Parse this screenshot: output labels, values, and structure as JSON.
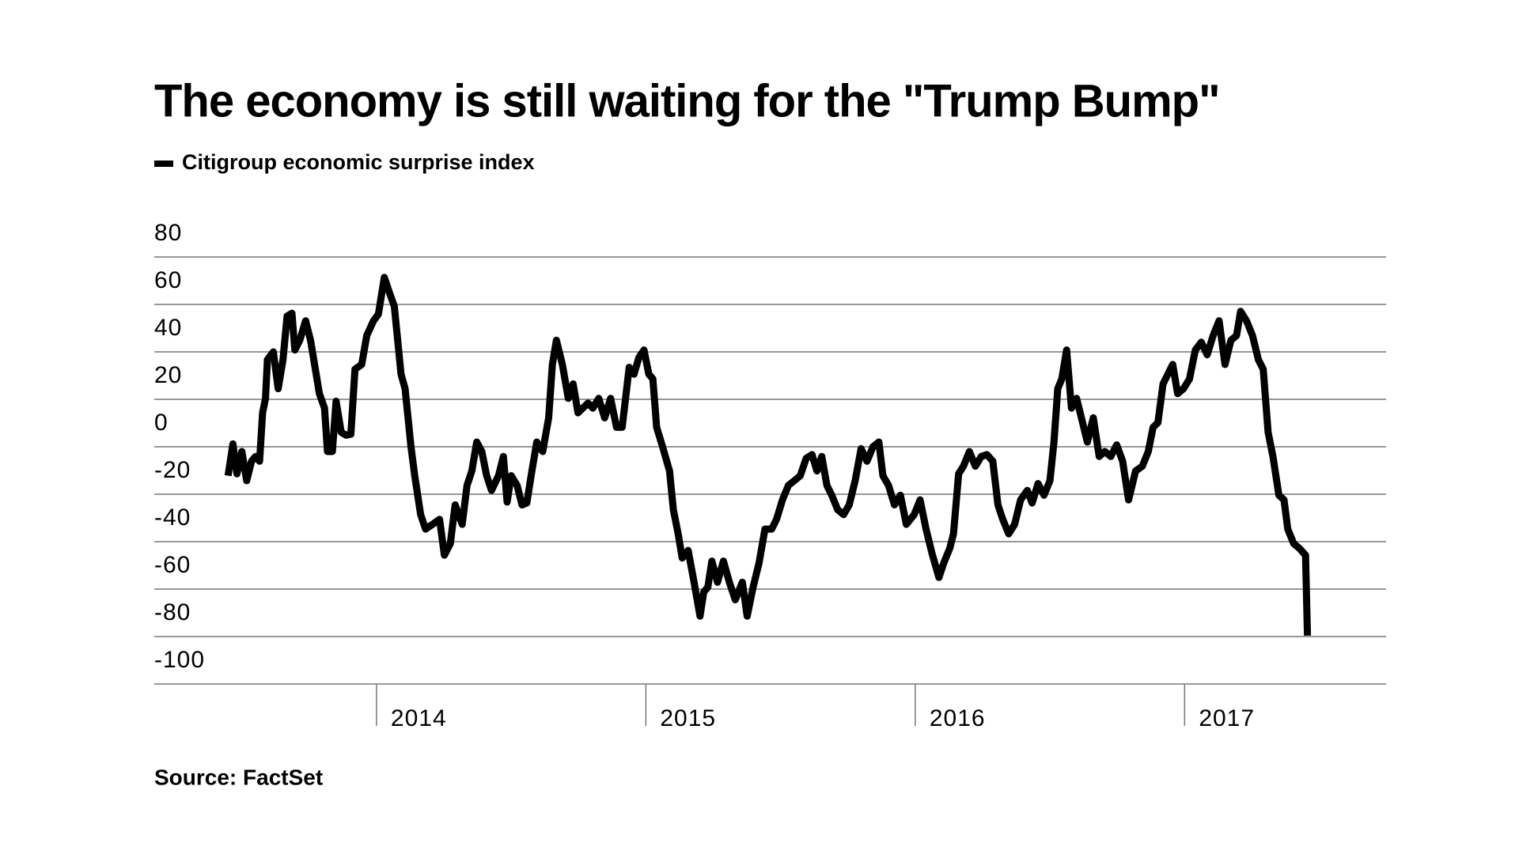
{
  "chart_data": {
    "type": "line",
    "title": "The economy is still waiting for the \"Trump Bump\"",
    "source": "Source: FactSet",
    "x": [
      2013.449,
      2013.467,
      2013.482,
      2013.5,
      2013.518,
      2013.536,
      2013.551,
      2013.566,
      2013.577,
      2013.588,
      2013.595,
      2013.617,
      2013.635,
      2013.653,
      2013.668,
      2013.686,
      2013.697,
      2013.715,
      2013.737,
      2013.755,
      2013.77,
      2013.788,
      2013.807,
      2013.818,
      2013.836,
      2013.85,
      2013.869,
      2013.887,
      2013.905,
      2013.92,
      2013.945,
      2013.964,
      2013.989,
      2014.007,
      2014.029,
      2014.047,
      2014.066,
      2014.077,
      2014.091,
      2014.106,
      2014.128,
      2014.142,
      2014.164,
      2014.182,
      2014.208,
      2014.234,
      2014.252,
      2014.274,
      2014.292,
      2014.318,
      2014.336,
      2014.354,
      2014.372,
      2014.391,
      2014.409,
      2014.427,
      2014.453,
      2014.471,
      2014.485,
      2014.5,
      2014.522,
      2014.54,
      2014.558,
      2014.577,
      2014.595,
      2014.617,
      2014.639,
      2014.653,
      2014.668,
      2014.69,
      2014.712,
      2014.73,
      2014.748,
      2014.766,
      2014.785,
      2014.803,
      2014.825,
      2014.847,
      2014.869,
      2014.891,
      2014.912,
      2014.938,
      2014.956,
      2014.974,
      2014.993,
      2015.011,
      2015.026,
      2015.04,
      2015.062,
      2015.088,
      2015.102,
      2015.12,
      2015.135,
      2015.157,
      2015.179,
      2015.201,
      2015.215,
      2015.23,
      2015.245,
      2015.266,
      2015.288,
      2015.31,
      2015.332,
      2015.358,
      2015.376,
      2015.398,
      2015.42,
      2015.442,
      2015.467,
      2015.485,
      2015.507,
      2015.529,
      2015.551,
      2015.573,
      2015.595,
      2015.617,
      2015.635,
      2015.653,
      2015.672,
      2015.69,
      2015.712,
      2015.734,
      2015.755,
      2015.777,
      2015.799,
      2015.821,
      2015.843,
      2015.865,
      2015.88,
      2015.901,
      2015.923,
      2015.945,
      2015.967,
      2015.996,
      2016.018,
      2016.04,
      2016.062,
      2016.088,
      2016.106,
      2016.128,
      2016.142,
      2016.161,
      2016.179,
      2016.201,
      2016.223,
      2016.245,
      2016.266,
      2016.288,
      2016.307,
      2016.325,
      2016.347,
      2016.369,
      2016.391,
      2016.416,
      2016.434,
      2016.456,
      2016.478,
      2016.5,
      2016.515,
      2016.529,
      2016.544,
      2016.562,
      2016.58,
      2016.599,
      2016.617,
      2016.639,
      2016.661,
      2016.683,
      2016.704,
      2016.726,
      2016.748,
      2016.77,
      2016.792,
      2016.818,
      2016.843,
      2016.865,
      2016.883,
      2016.901,
      2016.92,
      2016.938,
      2016.956,
      2016.974,
      2016.996,
      2017.018,
      2017.04,
      2017.062,
      2017.084,
      2017.106,
      2017.128,
      2017.15,
      2017.172,
      2017.193,
      2017.208,
      2017.23,
      2017.252,
      2017.274,
      2017.292,
      2017.31,
      2017.328,
      2017.35,
      2017.369,
      2017.383,
      2017.405,
      2017.427,
      2017.449,
      2017.456
    ],
    "series": [
      {
        "name": "Citigroup economic surprise index",
        "color": "#000000",
        "values": [
          -12.2,
          1.2,
          -11.4,
          -2.0,
          -14.3,
          -6.1,
          -4.1,
          -6.1,
          14.3,
          20.4,
          36.7,
          40.0,
          24.5,
          36.7,
          55.1,
          56.3,
          40.8,
          44.9,
          53.1,
          44.9,
          34.7,
          22.4,
          16.3,
          -2.0,
          -2.0,
          19.2,
          6.1,
          4.9,
          5.3,
          32.7,
          34.7,
          46.9,
          53.1,
          55.9,
          71.4,
          65.3,
          59.2,
          46.9,
          30.6,
          24.5,
          0,
          -12.2,
          -28.6,
          -34.7,
          -32.7,
          -30.6,
          -45.7,
          -40.8,
          -24.5,
          -32.7,
          -16.3,
          -10.2,
          2.0,
          -2.0,
          -12.2,
          -18.4,
          -12.2,
          -4.1,
          -23.3,
          -12.2,
          -16.3,
          -24.5,
          -23.7,
          -10.2,
          2.0,
          -2.0,
          12.2,
          34.7,
          44.9,
          34.7,
          20.4,
          26.5,
          14.3,
          16.3,
          18.4,
          16.3,
          20.4,
          12.2,
          20.4,
          8.2,
          8.2,
          33.5,
          30.6,
          37.6,
          40.8,
          30.6,
          28.6,
          8.2,
          0,
          -10.2,
          -26.5,
          -36.7,
          -46.9,
          -43.7,
          -57.1,
          -71.4,
          -61.2,
          -59.2,
          -48.2,
          -57.1,
          -48.2,
          -57.1,
          -64.5,
          -57.1,
          -71.4,
          -59.2,
          -49.0,
          -34.7,
          -34.7,
          -30.6,
          -22.4,
          -16.3,
          -14.3,
          -12.2,
          -4.9,
          -3.3,
          -10.2,
          -4.1,
          -16.3,
          -20.4,
          -26.5,
          -28.6,
          -24.5,
          -14.3,
          -0.8,
          -6.1,
          0,
          2.0,
          -12.2,
          -16.3,
          -24.5,
          -20.4,
          -32.7,
          -28.6,
          -22.4,
          -34.7,
          -44.9,
          -55.1,
          -49.0,
          -42.9,
          -36.7,
          -11.4,
          -8.2,
          -2.0,
          -8.2,
          -4.1,
          -3.3,
          -6.1,
          -24.5,
          -30.6,
          -36.7,
          -32.7,
          -22.4,
          -18.4,
          -23.7,
          -15.5,
          -20.4,
          -14.3,
          2.0,
          24.5,
          28.6,
          40.8,
          16.3,
          20.4,
          12.2,
          2.0,
          12.2,
          -4.1,
          -2.0,
          -4.1,
          0.8,
          -6.1,
          -22.4,
          -10.2,
          -8.2,
          -2.0,
          8.2,
          10.2,
          26.5,
          30.6,
          34.7,
          22.4,
          24.5,
          28.6,
          40.8,
          44.1,
          38.8,
          46.9,
          53.1,
          34.7,
          44.9,
          46.9,
          57.1,
          53.1,
          46.9,
          36.7,
          32.7,
          6.1,
          -4.1,
          -20.4,
          -22.4,
          -34.7,
          -40.8,
          -42.9,
          -45.7,
          -79.6
        ]
      }
    ],
    "xlim": [
      2013.175,
      2017.748
    ],
    "xticks": [
      2014,
      2015,
      2016,
      2017
    ],
    "ylim": [
      -100,
      80
    ],
    "yticks": [
      80,
      60,
      40,
      20,
      0,
      -20,
      -40,
      -60,
      -80,
      -100
    ],
    "grid": true
  }
}
